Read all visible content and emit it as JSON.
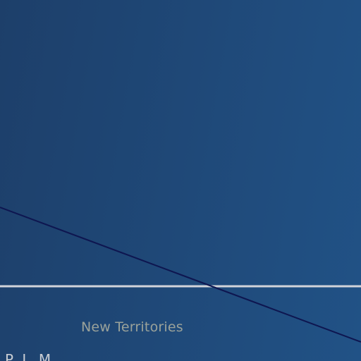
{
  "map": {
    "region_label": "New Territories",
    "edge_label": "P L M",
    "colors": {
      "water_dark": "#1d3f6a",
      "water_light": "#215286",
      "horizontal_line": "#d2d4da",
      "diagonal_line": "#0e1650",
      "label_text": "#9aa29a",
      "edge_label_text": "#c9cdd3"
    }
  }
}
